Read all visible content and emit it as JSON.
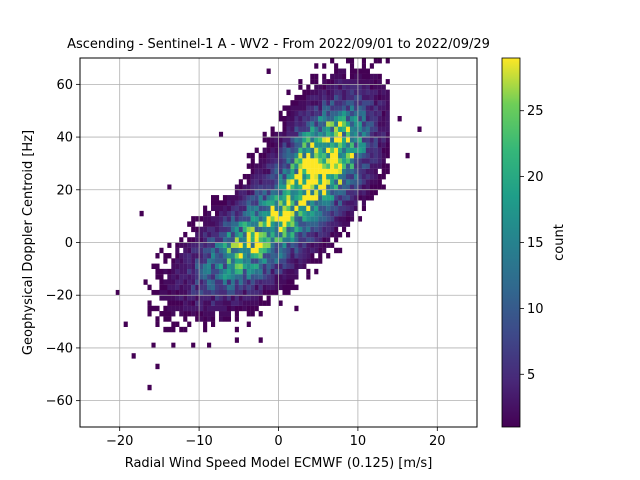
{
  "chart_data": {
    "type": "heatmap",
    "title": "Ascending - Sentinel-1 A - WV2 - From 2022/09/01 to 2022/09/29",
    "xlabel": "Radial Wind Speed Model ECMWF (0.125) [m/s]",
    "ylabel": "Geophysical Doppler Centroid [Hz]",
    "xlim": [
      -25,
      25
    ],
    "ylim": [
      -70,
      70
    ],
    "xticks": [
      -20,
      -10,
      0,
      10,
      20
    ],
    "yticks": [
      -60,
      -40,
      -20,
      0,
      20,
      40,
      60
    ],
    "xtick_labels": [
      "−20",
      "−10",
      "0",
      "10",
      "20"
    ],
    "ytick_labels": [
      "−60",
      "−40",
      "−20",
      "0",
      "20",
      "40",
      "60"
    ],
    "grid": true,
    "colormap": "viridis",
    "colorbar": {
      "label": "count",
      "range": [
        1,
        29
      ],
      "ticks": [
        5,
        10,
        15,
        20,
        25
      ],
      "tick_labels": [
        "5",
        "10",
        "15",
        "20",
        "25"
      ]
    },
    "bin_size": {
      "x": 0.5,
      "y": 2
    },
    "clusters": [
      {
        "cx": 6,
        "cy": 33,
        "sx": 3.4,
        "sy": 13,
        "rho": 0.45,
        "peak": 28
      },
      {
        "cx": -4,
        "cy": -4,
        "sx": 4.6,
        "sy": 11,
        "rho": 0.55,
        "peak": 16
      },
      {
        "cx": 1,
        "cy": 14,
        "sx": 5,
        "sy": 13,
        "rho": 0.7,
        "peak": 13
      }
    ],
    "outliers": [
      {
        "x": -20.2,
        "y": -19
      },
      {
        "x": -19.2,
        "y": -31
      },
      {
        "x": -18.5,
        "y": -43
      },
      {
        "x": -16.2,
        "y": -55
      },
      {
        "x": -15.7,
        "y": -40
      },
      {
        "x": -15.2,
        "y": -48
      },
      {
        "x": -13.2,
        "y": -40
      },
      {
        "x": -10.7,
        "y": -40
      },
      {
        "x": -8.7,
        "y": -39
      },
      {
        "x": -5.2,
        "y": -37
      },
      {
        "x": -2.2,
        "y": -37
      },
      {
        "x": 5.3,
        "y": -7
      },
      {
        "x": 16.0,
        "y": 32
      },
      {
        "x": 17.8,
        "y": 42
      },
      {
        "x": 15.2,
        "y": 47
      },
      {
        "x": 11.3,
        "y": 63
      },
      {
        "x": 9.2,
        "y": 69
      },
      {
        "x": -1.4,
        "y": 64
      },
      {
        "x": -7.2,
        "y": 41
      },
      {
        "x": -13.8,
        "y": 20
      },
      {
        "x": -17.3,
        "y": 10
      },
      {
        "x": 2.3,
        "y": -25
      },
      {
        "x": 0.8,
        "y": -18
      },
      {
        "x": -3.8,
        "y": -32
      }
    ]
  }
}
